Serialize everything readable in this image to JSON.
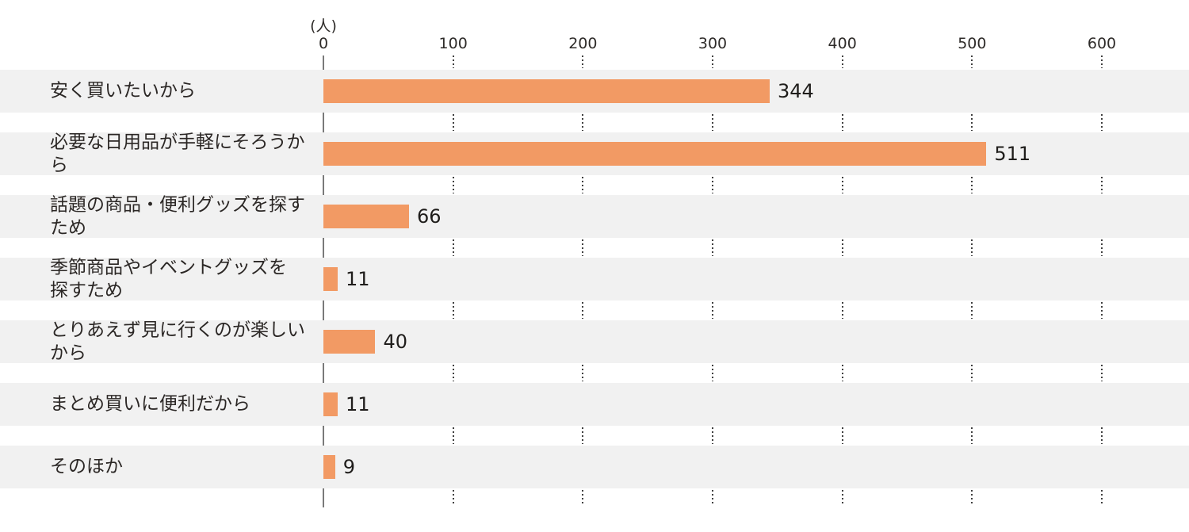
{
  "chart_data": {
    "type": "bar",
    "orientation": "horizontal",
    "title": "",
    "unit_label": "(人)",
    "xlabel": "",
    "ylabel": "",
    "xlim": [
      0,
      600
    ],
    "xticks": [
      0,
      100,
      200,
      300,
      400,
      500,
      600
    ],
    "grid": "dotted vertical gridlines at ticks, visible only in white gaps between row bands",
    "legend": "none",
    "categories": [
      "安く買いたいから",
      "必要な日用品が手軽にそろうから",
      "話題の商品・便利グッズを探すため",
      "季節商品やイベントグッズを\n探すため",
      "とりあえず見に行くのが楽しいから",
      "まとめ買いに便利だから",
      "そのほか"
    ],
    "values": [
      344,
      511,
      66,
      11,
      40,
      11,
      9
    ],
    "colors": {
      "bar": "#F29A64",
      "row_band": "#F1F1F1",
      "axis_line": "#7A7A7A",
      "gridline_dots": "#3F3F3F",
      "text": "#2B2725",
      "background": "#FFFFFF"
    }
  }
}
